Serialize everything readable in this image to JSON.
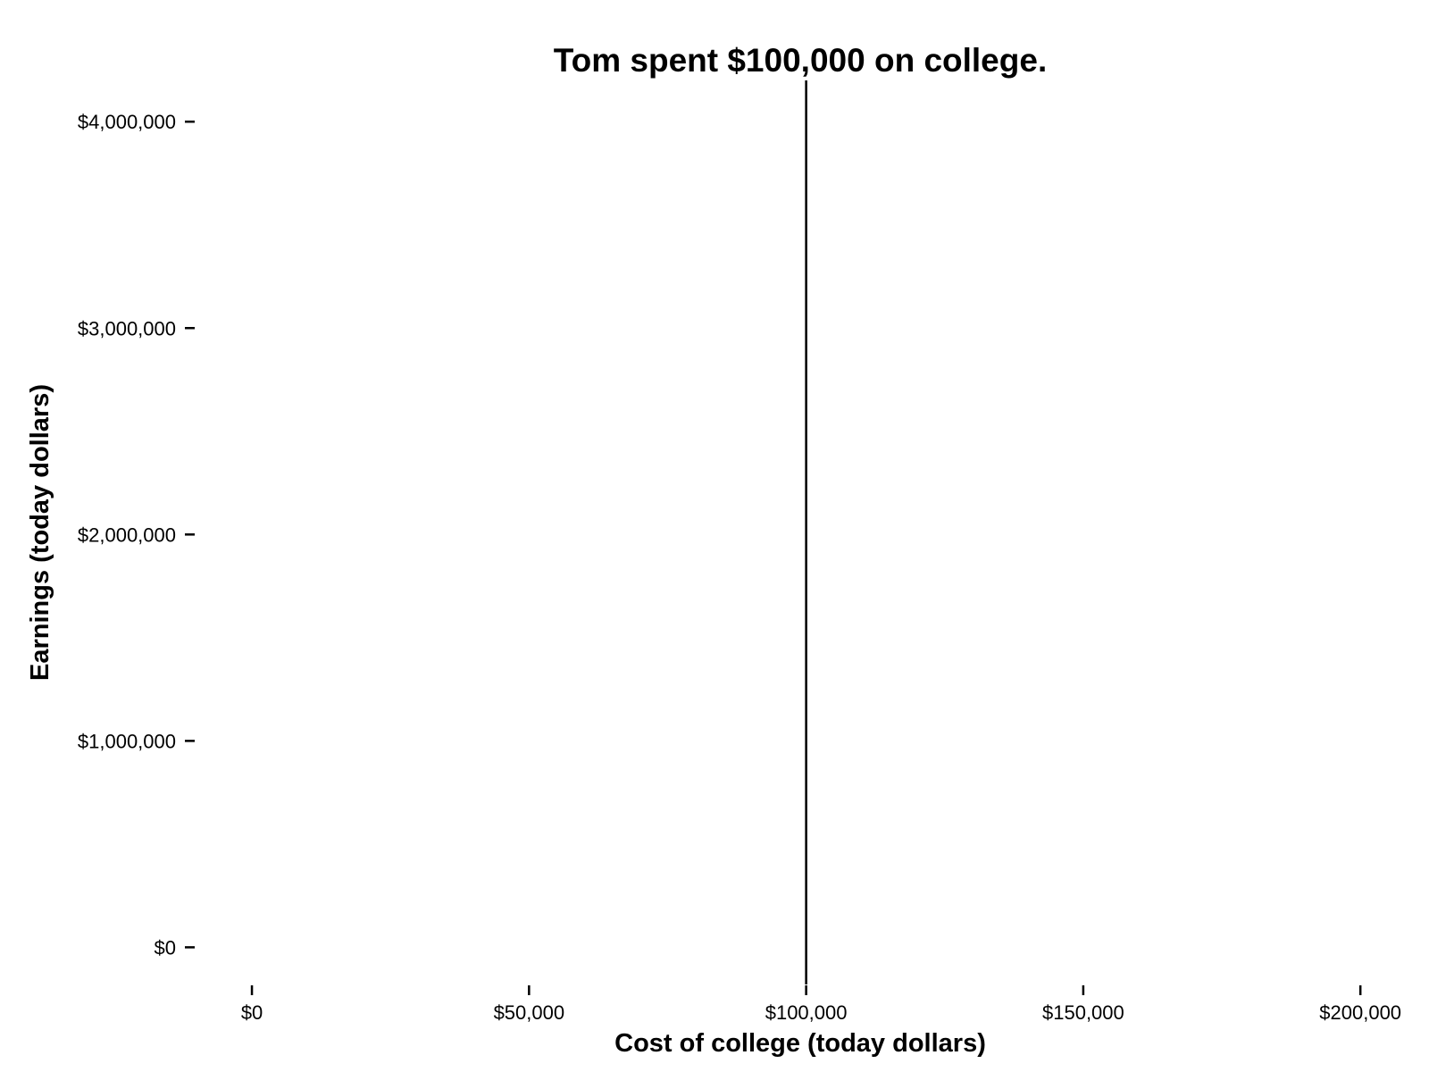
{
  "chart_data": {
    "type": "line",
    "title": "Tom spent $100,000 on college.",
    "xlabel": "Cost of college (today dollars)",
    "ylabel": "Earnings (today dollars)",
    "xlim": [
      -10000,
      204000
    ],
    "ylim": [
      -180000,
      4200000
    ],
    "x_ticks": [
      {
        "value": 0,
        "label": "$0"
      },
      {
        "value": 50000,
        "label": "$50,000"
      },
      {
        "value": 100000,
        "label": "$100,000"
      },
      {
        "value": 150000,
        "label": "$150,000"
      },
      {
        "value": 200000,
        "label": "$200,000"
      }
    ],
    "y_ticks": [
      {
        "value": 0,
        "label": "$0"
      },
      {
        "value": 1000000,
        "label": "$1,000,000"
      },
      {
        "value": 2000000,
        "label": "$2,000,000"
      },
      {
        "value": 3000000,
        "label": "$3,000,000"
      },
      {
        "value": 4000000,
        "label": "$4,000,000"
      }
    ],
    "vlines": [
      {
        "x": 100000,
        "color": "#000000"
      }
    ],
    "grid": false,
    "legend": "none"
  }
}
